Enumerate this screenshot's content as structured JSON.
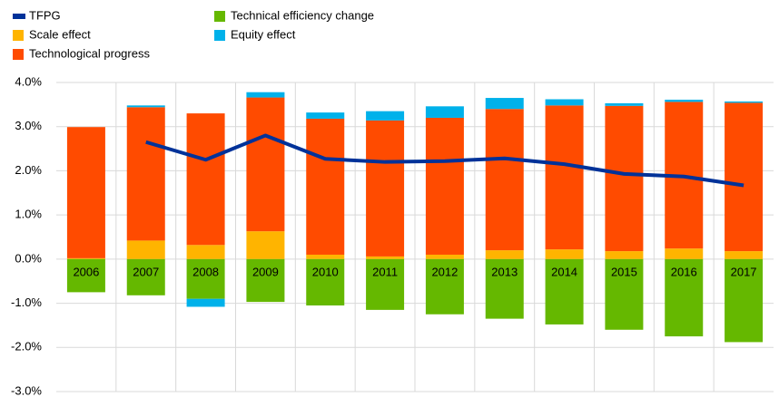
{
  "chart_data": {
    "type": "bar",
    "stacked": true,
    "categories": [
      "2006",
      "2007",
      "2008",
      "2009",
      "2010",
      "2011",
      "2012",
      "2013",
      "2014",
      "2015",
      "2016",
      "2017"
    ],
    "series": [
      {
        "name": "TFPG",
        "type": "line",
        "color": "#003299",
        "values": [
          null,
          2.65,
          2.25,
          2.8,
          2.27,
          2.2,
          2.22,
          2.28,
          2.15,
          1.93,
          1.87,
          1.67
        ]
      },
      {
        "name": "Scale effect",
        "color": "#ffb400",
        "values": [
          0.02,
          0.42,
          0.32,
          0.63,
          0.1,
          0.06,
          0.1,
          0.2,
          0.22,
          0.18,
          0.24,
          0.18
        ]
      },
      {
        "name": "Technological progress",
        "color": "#ff4b00",
        "values": [
          2.97,
          3.02,
          2.98,
          3.03,
          3.08,
          3.08,
          3.1,
          3.2,
          3.26,
          3.29,
          3.32,
          3.36
        ]
      },
      {
        "name": "Technical efficiency change",
        "color": "#65b800",
        "values": [
          -0.75,
          -0.82,
          -0.9,
          -0.97,
          -1.05,
          -1.15,
          -1.25,
          -1.35,
          -1.48,
          -1.6,
          -1.75,
          -1.88
        ]
      },
      {
        "name": "Equity effect",
        "color": "#00b1ea",
        "values": [
          0,
          0.04,
          -0.18,
          0.12,
          0.14,
          0.21,
          0.26,
          0.25,
          0.14,
          0.06,
          0.05,
          0.03
        ]
      }
    ],
    "ylim": [
      -3,
      4
    ],
    "yticks": [
      {
        "value": -3,
        "label": "-3.0%"
      },
      {
        "value": -2,
        "label": "-2.0%"
      },
      {
        "value": -1,
        "label": "-1.0%"
      },
      {
        "value": 0,
        "label": "0.0%"
      },
      {
        "value": 1,
        "label": "1.0%"
      },
      {
        "value": 2,
        "label": "2.0%"
      },
      {
        "value": 3,
        "label": "3.0%"
      },
      {
        "value": 4,
        "label": "4.0%"
      }
    ],
    "grid": true,
    "legend": "top-left"
  }
}
